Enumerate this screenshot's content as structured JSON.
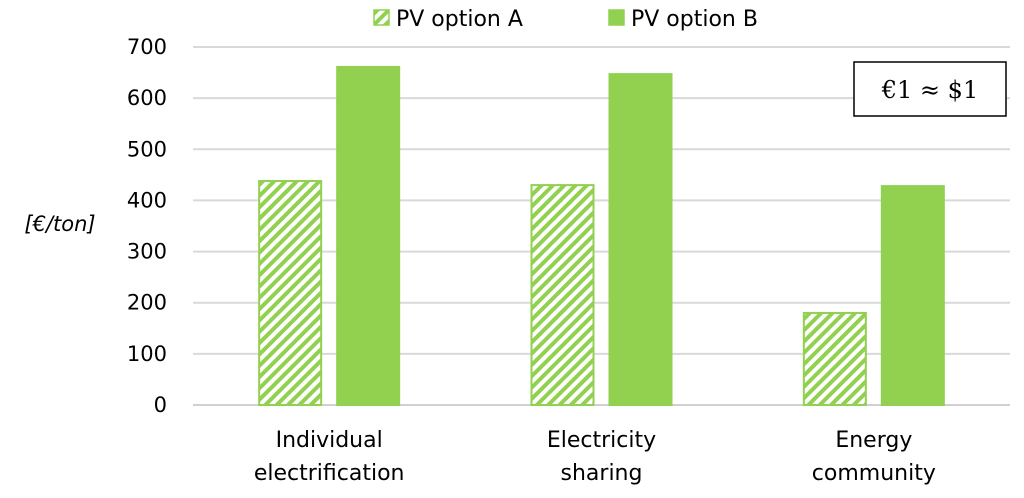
{
  "chart_data": {
    "type": "bar",
    "title": "",
    "xlabel": "",
    "ylabel": "[€/ton]",
    "ylim": [
      0,
      700
    ],
    "yticks": [
      0,
      100,
      200,
      300,
      400,
      500,
      600,
      700
    ],
    "grid": true,
    "legend_position": "top",
    "categories": [
      [
        "Individual",
        "electrification"
      ],
      [
        "Electricity",
        "sharing"
      ],
      [
        "Energy",
        "community"
      ]
    ],
    "series": [
      {
        "name": "PV option A",
        "style": "hatched",
        "color": "#92d050",
        "values": [
          438,
          430,
          180
        ]
      },
      {
        "name": "PV option B",
        "style": "solid",
        "color": "#92d050",
        "values": [
          661,
          647,
          428
        ]
      }
    ],
    "annotation": "€1 ≈ $1"
  }
}
